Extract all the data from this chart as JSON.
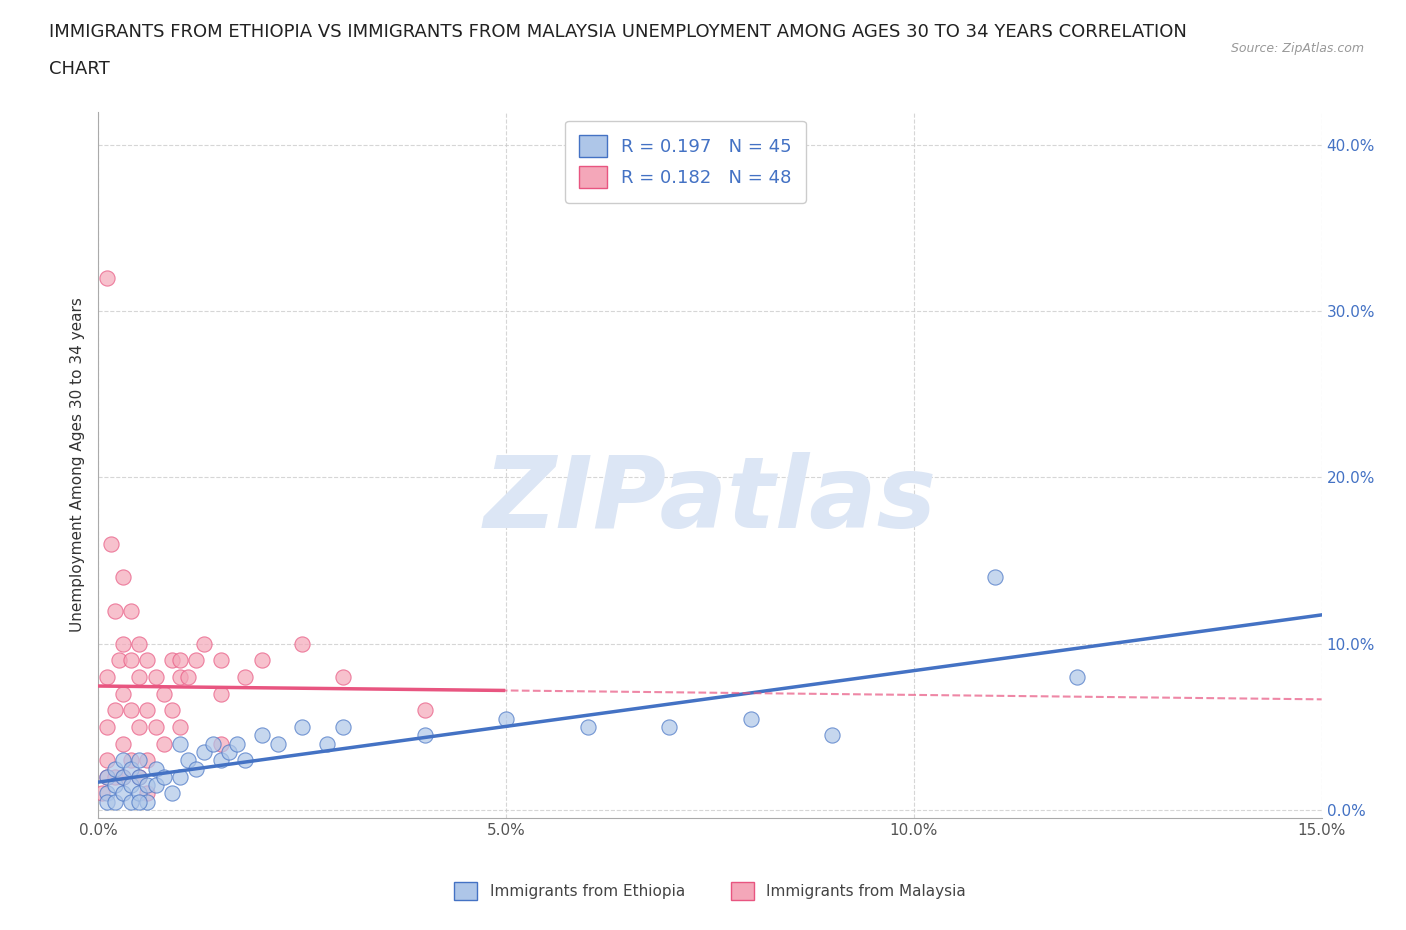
{
  "title_line1": "IMMIGRANTS FROM ETHIOPIA VS IMMIGRANTS FROM MALAYSIA UNEMPLOYMENT AMONG AGES 30 TO 34 YEARS CORRELATION",
  "title_line2": "CHART",
  "source_text": "Source: ZipAtlas.com",
  "ylabel": "Unemployment Among Ages 30 to 34 years",
  "watermark": "ZIPatlas",
  "legend_entries": [
    {
      "label": "Immigrants from Ethiopia",
      "color": "#aec6e8",
      "line_color": "#4472c4",
      "R": 0.197,
      "N": 45
    },
    {
      "label": "Immigrants from Malaysia",
      "color": "#f4a7b9",
      "line_color": "#e85580",
      "R": 0.182,
      "N": 48
    }
  ],
  "ethiopia_scatter": [
    [
      0.001,
      0.02
    ],
    [
      0.001,
      0.01
    ],
    [
      0.002,
      0.015
    ],
    [
      0.001,
      0.005
    ],
    [
      0.002,
      0.025
    ],
    [
      0.002,
      0.005
    ],
    [
      0.003,
      0.02
    ],
    [
      0.003,
      0.01
    ],
    [
      0.003,
      0.03
    ],
    [
      0.004,
      0.015
    ],
    [
      0.004,
      0.005
    ],
    [
      0.004,
      0.025
    ],
    [
      0.005,
      0.02
    ],
    [
      0.005,
      0.01
    ],
    [
      0.005,
      0.03
    ],
    [
      0.006,
      0.015
    ],
    [
      0.006,
      0.005
    ],
    [
      0.007,
      0.025
    ],
    [
      0.007,
      0.015
    ],
    [
      0.008,
      0.02
    ],
    [
      0.009,
      0.01
    ],
    [
      0.01,
      0.04
    ],
    [
      0.01,
      0.02
    ],
    [
      0.011,
      0.03
    ],
    [
      0.012,
      0.025
    ],
    [
      0.013,
      0.035
    ],
    [
      0.014,
      0.04
    ],
    [
      0.015,
      0.03
    ],
    [
      0.016,
      0.035
    ],
    [
      0.017,
      0.04
    ],
    [
      0.018,
      0.03
    ],
    [
      0.02,
      0.045
    ],
    [
      0.022,
      0.04
    ],
    [
      0.025,
      0.05
    ],
    [
      0.028,
      0.04
    ],
    [
      0.03,
      0.05
    ],
    [
      0.04,
      0.045
    ],
    [
      0.05,
      0.055
    ],
    [
      0.06,
      0.05
    ],
    [
      0.07,
      0.05
    ],
    [
      0.08,
      0.055
    ],
    [
      0.09,
      0.045
    ],
    [
      0.11,
      0.14
    ],
    [
      0.12,
      0.08
    ],
    [
      0.005,
      0.005
    ]
  ],
  "malaysia_scatter": [
    [
      0.0005,
      0.01
    ],
    [
      0.001,
      0.02
    ],
    [
      0.001,
      0.03
    ],
    [
      0.001,
      0.05
    ],
    [
      0.001,
      0.08
    ],
    [
      0.001,
      0.32
    ],
    [
      0.0015,
      0.16
    ],
    [
      0.002,
      0.12
    ],
    [
      0.002,
      0.06
    ],
    [
      0.002,
      0.02
    ],
    [
      0.0025,
      0.09
    ],
    [
      0.003,
      0.14
    ],
    [
      0.003,
      0.1
    ],
    [
      0.003,
      0.07
    ],
    [
      0.003,
      0.04
    ],
    [
      0.003,
      0.02
    ],
    [
      0.004,
      0.12
    ],
    [
      0.004,
      0.09
    ],
    [
      0.004,
      0.06
    ],
    [
      0.004,
      0.03
    ],
    [
      0.005,
      0.1
    ],
    [
      0.005,
      0.08
    ],
    [
      0.005,
      0.05
    ],
    [
      0.005,
      0.02
    ],
    [
      0.006,
      0.09
    ],
    [
      0.006,
      0.06
    ],
    [
      0.006,
      0.03
    ],
    [
      0.006,
      0.01
    ],
    [
      0.007,
      0.08
    ],
    [
      0.007,
      0.05
    ],
    [
      0.008,
      0.07
    ],
    [
      0.008,
      0.04
    ],
    [
      0.009,
      0.09
    ],
    [
      0.009,
      0.06
    ],
    [
      0.01,
      0.08
    ],
    [
      0.01,
      0.05
    ],
    [
      0.01,
      0.09
    ],
    [
      0.011,
      0.08
    ],
    [
      0.012,
      0.09
    ],
    [
      0.013,
      0.1
    ],
    [
      0.015,
      0.09
    ],
    [
      0.015,
      0.07
    ],
    [
      0.015,
      0.04
    ],
    [
      0.018,
      0.08
    ],
    [
      0.02,
      0.09
    ],
    [
      0.025,
      0.1
    ],
    [
      0.03,
      0.08
    ],
    [
      0.04,
      0.06
    ]
  ],
  "xlim": [
    0.0,
    0.15
  ],
  "ylim": [
    -0.005,
    0.42
  ],
  "xticks": [
    0.0,
    0.05,
    0.1,
    0.15
  ],
  "yticks": [
    0.0,
    0.1,
    0.2,
    0.3,
    0.4
  ],
  "background_color": "#ffffff",
  "grid_color": "#cccccc",
  "title_fontsize": 13,
  "axis_label_fontsize": 11,
  "tick_fontsize": 11,
  "watermark_color": "#dce6f5",
  "watermark_fontsize": 72
}
